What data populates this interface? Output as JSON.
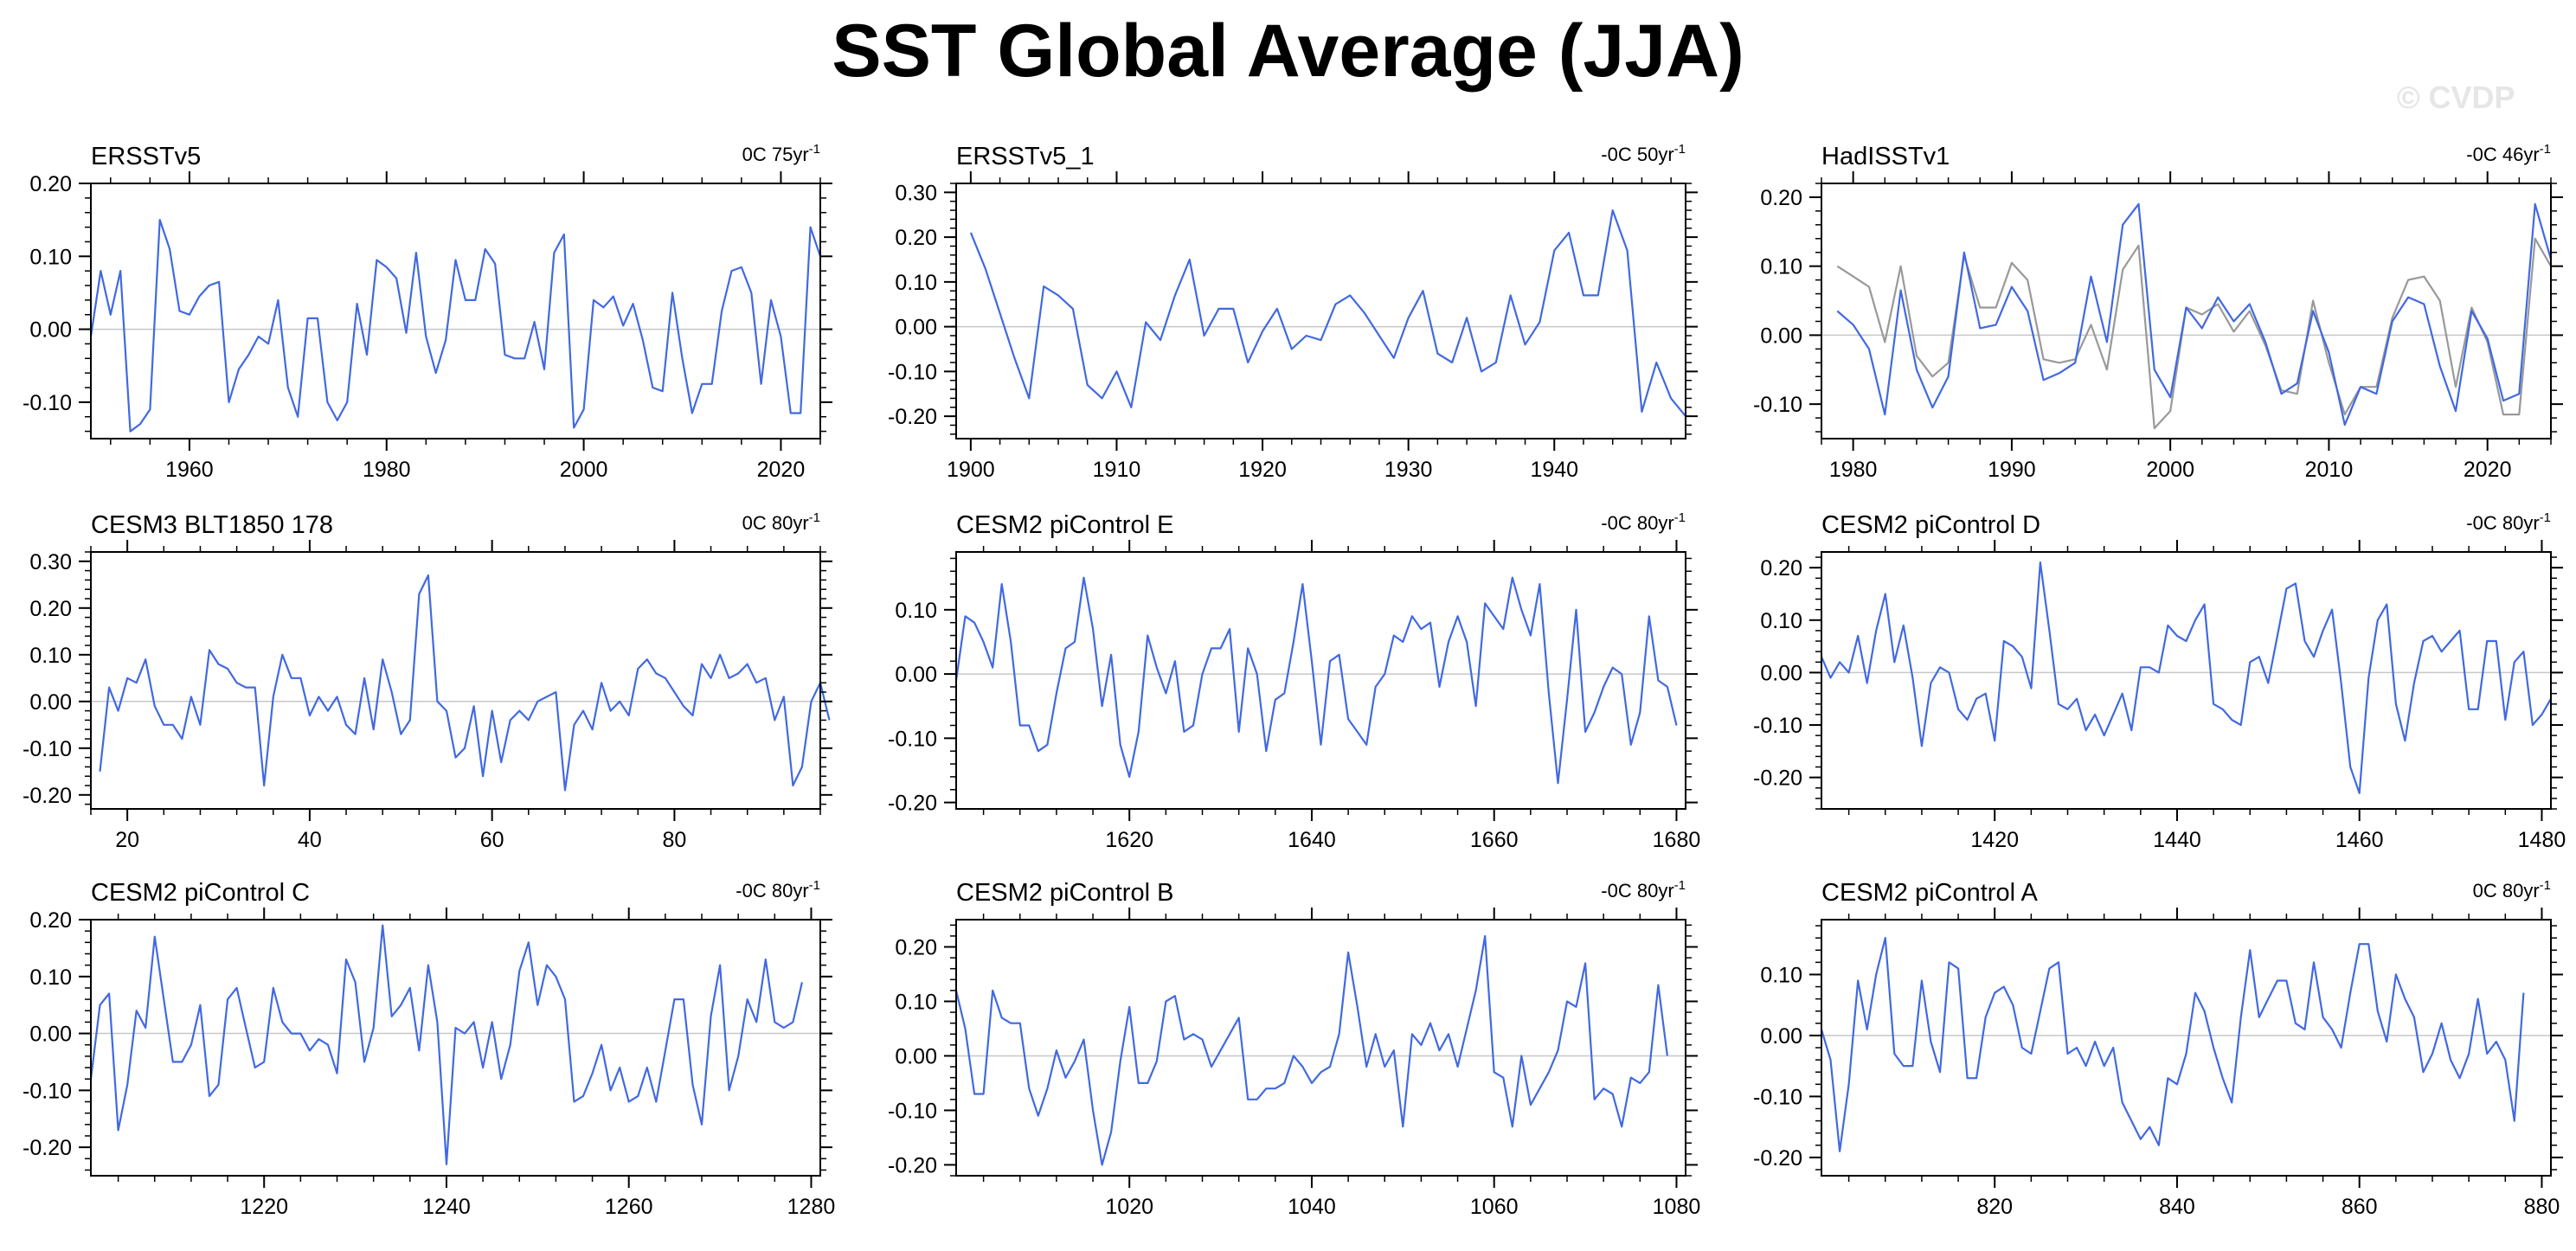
{
  "title": "SST Global Average (JJA)",
  "watermark": "© CVDP",
  "colors": {
    "series": "#4169e1",
    "secondary": "#999999",
    "zero_line": "#c8c8c8",
    "axis": "#000000"
  },
  "chart_data": [
    {
      "type": "line",
      "title": "ERSSTv5",
      "trend": "0C 75yr",
      "trend_exp": "-1",
      "xlim": [
        1950,
        2024
      ],
      "ylim": [
        -0.15,
        0.2
      ],
      "yticks": [
        -0.1,
        0.0,
        0.1,
        0.2
      ],
      "xticks": [
        1960,
        1980,
        2000,
        2020
      ],
      "x_start": 1950,
      "series": [
        {
          "values": [
            -0.01,
            0.08,
            0.02,
            0.08,
            -0.14,
            -0.13,
            -0.11,
            0.15,
            0.11,
            0.025,
            0.02,
            0.045,
            0.06,
            0.065,
            -0.1,
            -0.055,
            -0.035,
            -0.01,
            -0.02,
            0.04,
            -0.08,
            -0.12,
            0.015,
            0.015,
            -0.1,
            -0.125,
            -0.1,
            0.035,
            -0.035,
            0.095,
            0.085,
            0.07,
            -0.005,
            0.105,
            -0.01,
            -0.06,
            -0.015,
            0.095,
            0.04,
            0.04,
            0.11,
            0.09,
            -0.035,
            -0.04,
            -0.04,
            0.01,
            -0.055,
            0.105,
            0.13,
            -0.135,
            -0.11,
            0.04,
            0.03,
            0.045,
            0.005,
            0.035,
            -0.015,
            -0.08,
            -0.085,
            0.05,
            -0.04,
            -0.115,
            -0.075,
            -0.075,
            0.025,
            0.08,
            0.085,
            0.05,
            -0.075,
            0.04,
            -0.01,
            -0.115,
            -0.115,
            0.14,
            0.1
          ]
        }
      ]
    },
    {
      "type": "line",
      "title": "ERSSTv5_1",
      "trend": "-0C 50yr",
      "trend_exp": "-1",
      "xlim": [
        1899,
        1949
      ],
      "ylim": [
        -0.25,
        0.32
      ],
      "yticks": [
        -0.2,
        -0.1,
        0.0,
        0.1,
        0.2,
        0.3
      ],
      "xticks": [
        1900,
        1910,
        1920,
        1930,
        1940
      ],
      "x_start": 1900,
      "series": [
        {
          "values": [
            0.21,
            0.13,
            0.03,
            -0.07,
            -0.16,
            0.09,
            0.07,
            0.04,
            -0.13,
            -0.16,
            -0.1,
            -0.18,
            0.01,
            -0.03,
            0.07,
            0.15,
            -0.02,
            0.04,
            0.04,
            -0.08,
            -0.01,
            0.04,
            -0.05,
            -0.02,
            -0.03,
            0.05,
            0.07,
            0.03,
            -0.02,
            -0.07,
            0.02,
            0.08,
            -0.06,
            -0.08,
            0.02,
            -0.1,
            -0.08,
            0.07,
            -0.04,
            0.01,
            0.17,
            0.21,
            0.07,
            0.07,
            0.26,
            0.17,
            -0.19,
            -0.08,
            -0.16,
            -0.2
          ]
        }
      ]
    },
    {
      "type": "line",
      "title": "HadISSTv1",
      "trend": "-0C 46yr",
      "trend_exp": "-1",
      "xlim": [
        1978,
        2024
      ],
      "ylim": [
        -0.15,
        0.22
      ],
      "yticks": [
        -0.1,
        0.0,
        0.1,
        0.2
      ],
      "xticks": [
        1980,
        1990,
        2000,
        2010,
        2020
      ],
      "x_start": 1979,
      "series": [
        {
          "values": [
            0.035,
            0.015,
            -0.02,
            -0.115,
            0.065,
            -0.05,
            -0.105,
            -0.06,
            0.12,
            0.01,
            0.015,
            0.07,
            0.035,
            -0.065,
            -0.055,
            -0.04,
            0.085,
            -0.01,
            0.16,
            0.19,
            -0.05,
            -0.09,
            0.04,
            0.01,
            0.055,
            0.02,
            0.045,
            -0.01,
            -0.085,
            -0.07,
            0.035,
            -0.025,
            -0.13,
            -0.075,
            -0.085,
            0.02,
            0.055,
            0.045,
            -0.045,
            -0.11,
            0.035,
            -0.005,
            -0.095,
            -0.085,
            0.19,
            0.11
          ]
        },
        {
          "values": [
            0.1,
            0.085,
            0.07,
            -0.01,
            0.1,
            -0.03,
            -0.06,
            -0.04,
            0.115,
            0.04,
            0.04,
            0.105,
            0.08,
            -0.035,
            -0.04,
            -0.035,
            0.015,
            -0.05,
            0.095,
            0.13,
            -0.135,
            -0.11,
            0.04,
            0.03,
            0.045,
            0.005,
            0.035,
            -0.015,
            -0.08,
            -0.085,
            0.05,
            -0.04,
            -0.115,
            -0.075,
            -0.075,
            0.025,
            0.08,
            0.085,
            0.05,
            -0.075,
            0.04,
            -0.01,
            -0.115,
            -0.115,
            0.14,
            0.1
          ]
        }
      ]
    },
    {
      "type": "line",
      "title": "CESM3 BLT1850 178",
      "trend": "0C 80yr",
      "trend_exp": "-1",
      "xlim": [
        16,
        96
      ],
      "ylim": [
        -0.23,
        0.32
      ],
      "yticks": [
        -0.2,
        -0.1,
        0.0,
        0.1,
        0.2,
        0.3
      ],
      "xticks": [
        20,
        40,
        60,
        80
      ],
      "x_start": 17,
      "series": [
        {
          "values": [
            -0.15,
            0.03,
            -0.02,
            0.05,
            0.04,
            0.09,
            -0.01,
            -0.05,
            -0.05,
            -0.08,
            0.01,
            -0.05,
            0.11,
            0.08,
            0.07,
            0.04,
            0.03,
            0.03,
            -0.18,
            0.01,
            0.1,
            0.05,
            0.05,
            -0.03,
            0.01,
            -0.02,
            0.01,
            -0.05,
            -0.07,
            0.05,
            -0.06,
            0.09,
            0.02,
            -0.07,
            -0.04,
            0.23,
            0.27,
            0.0,
            -0.02,
            -0.12,
            -0.1,
            -0.01,
            -0.16,
            -0.02,
            -0.13,
            -0.04,
            -0.02,
            -0.04,
            0.0,
            0.01,
            0.02,
            -0.19,
            -0.05,
            -0.02,
            -0.06,
            0.04,
            -0.02,
            0.0,
            -0.03,
            0.07,
            0.09,
            0.06,
            0.05,
            0.02,
            -0.01,
            -0.03,
            0.08,
            0.05,
            0.1,
            0.05,
            0.06,
            0.08,
            0.04,
            0.05,
            -0.04,
            0.01,
            -0.18,
            -0.14,
            0.0,
            0.04,
            -0.04
          ]
        }
      ]
    },
    {
      "type": "line",
      "title": "CESM2 piControl E",
      "trend": "-0C 80yr",
      "trend_exp": "-1",
      "xlim": [
        1601,
        1681
      ],
      "ylim": [
        -0.21,
        0.19
      ],
      "yticks": [
        -0.2,
        -0.1,
        0.0,
        0.1
      ],
      "xticks": [
        1620,
        1640,
        1660,
        1680
      ],
      "x_start": 1601,
      "series": [
        {
          "values": [
            -0.01,
            0.09,
            0.08,
            0.05,
            0.01,
            0.14,
            0.05,
            -0.08,
            -0.08,
            -0.12,
            -0.11,
            -0.03,
            0.04,
            0.05,
            0.15,
            0.07,
            -0.05,
            0.03,
            -0.11,
            -0.16,
            -0.09,
            0.06,
            0.01,
            -0.03,
            0.02,
            -0.09,
            -0.08,
            0.0,
            0.04,
            0.04,
            0.07,
            -0.09,
            0.04,
            0.0,
            -0.12,
            -0.04,
            -0.03,
            0.05,
            0.14,
            0.02,
            -0.11,
            0.02,
            0.03,
            -0.07,
            -0.09,
            -0.11,
            -0.02,
            0.0,
            0.06,
            0.05,
            0.09,
            0.07,
            0.08,
            -0.02,
            0.05,
            0.09,
            0.05,
            -0.05,
            0.11,
            0.09,
            0.07,
            0.15,
            0.1,
            0.06,
            0.14,
            -0.03,
            -0.17,
            -0.04,
            0.1,
            -0.09,
            -0.06,
            -0.02,
            0.01,
            0.0,
            -0.11,
            -0.06,
            0.09,
            -0.01,
            -0.02,
            -0.08
          ]
        }
      ]
    },
    {
      "type": "line",
      "title": "CESM2 piControl D",
      "trend": "-0C 80yr",
      "trend_exp": "-1",
      "xlim": [
        1401,
        1481
      ],
      "ylim": [
        -0.26,
        0.23
      ],
      "yticks": [
        -0.2,
        -0.1,
        0.0,
        0.1,
        0.2
      ],
      "xticks": [
        1420,
        1440,
        1460,
        1480
      ],
      "x_start": 1401,
      "series": [
        {
          "values": [
            0.03,
            -0.01,
            0.02,
            0.0,
            0.07,
            -0.02,
            0.08,
            0.15,
            0.02,
            0.09,
            -0.01,
            -0.14,
            -0.02,
            0.01,
            0.0,
            -0.07,
            -0.09,
            -0.05,
            -0.04,
            -0.13,
            0.06,
            0.05,
            0.03,
            -0.03,
            0.21,
            0.08,
            -0.06,
            -0.07,
            -0.05,
            -0.11,
            -0.08,
            -0.12,
            -0.08,
            -0.04,
            -0.11,
            0.01,
            0.01,
            0.0,
            0.09,
            0.07,
            0.06,
            0.1,
            0.13,
            -0.06,
            -0.07,
            -0.09,
            -0.1,
            0.02,
            0.03,
            -0.02,
            0.07,
            0.16,
            0.17,
            0.06,
            0.03,
            0.08,
            0.12,
            -0.02,
            -0.18,
            -0.23,
            -0.01,
            0.1,
            0.13,
            -0.06,
            -0.13,
            -0.02,
            0.06,
            0.07,
            0.04,
            0.06,
            0.08,
            -0.07,
            -0.07,
            0.06,
            0.06,
            -0.09,
            0.02,
            0.04,
            -0.1,
            -0.08,
            -0.05
          ]
        }
      ]
    },
    {
      "type": "line",
      "title": "CESM2 piControl C",
      "trend": "-0C 80yr",
      "trend_exp": "-1",
      "xlim": [
        1201,
        1281
      ],
      "ylim": [
        -0.25,
        0.2
      ],
      "yticks": [
        -0.2,
        -0.1,
        0.0,
        0.1,
        0.2
      ],
      "xticks": [
        1220,
        1240,
        1260,
        1280
      ],
      "x_start": 1201,
      "series": [
        {
          "values": [
            -0.08,
            0.05,
            0.07,
            -0.17,
            -0.09,
            0.04,
            0.01,
            0.17,
            0.06,
            -0.05,
            -0.05,
            -0.02,
            0.05,
            -0.11,
            -0.09,
            0.06,
            0.08,
            0.01,
            -0.06,
            -0.05,
            0.08,
            0.02,
            0.0,
            0.0,
            -0.03,
            -0.01,
            -0.02,
            -0.07,
            0.13,
            0.09,
            -0.05,
            0.01,
            0.19,
            0.03,
            0.05,
            0.08,
            -0.03,
            0.12,
            0.02,
            -0.23,
            0.01,
            0.0,
            0.02,
            -0.06,
            0.02,
            -0.08,
            -0.02,
            0.11,
            0.16,
            0.05,
            0.12,
            0.1,
            0.06,
            -0.12,
            -0.11,
            -0.07,
            -0.02,
            -0.1,
            -0.06,
            -0.12,
            -0.11,
            -0.06,
            -0.12,
            -0.03,
            0.06,
            0.06,
            -0.09,
            -0.16,
            0.03,
            0.12,
            -0.1,
            -0.04,
            0.06,
            0.02,
            0.13,
            0.02,
            0.01,
            0.02,
            0.09
          ]
        }
      ]
    },
    {
      "type": "line",
      "title": "CESM2 piControl B",
      "trend": "-0C 80yr",
      "trend_exp": "-1",
      "xlim": [
        1001,
        1081
      ],
      "ylim": [
        -0.22,
        0.25
      ],
      "yticks": [
        -0.2,
        -0.1,
        0.0,
        0.1,
        0.2
      ],
      "xticks": [
        1020,
        1040,
        1060,
        1080
      ],
      "x_start": 1001,
      "series": [
        {
          "values": [
            0.12,
            0.05,
            -0.07,
            -0.07,
            0.12,
            0.07,
            0.06,
            0.06,
            -0.06,
            -0.11,
            -0.06,
            0.01,
            -0.04,
            -0.01,
            0.03,
            -0.1,
            -0.2,
            -0.14,
            -0.01,
            0.09,
            -0.05,
            -0.05,
            -0.01,
            0.1,
            0.11,
            0.03,
            0.04,
            0.03,
            -0.02,
            0.01,
            0.04,
            0.07,
            -0.08,
            -0.08,
            -0.06,
            -0.06,
            -0.05,
            0.0,
            -0.02,
            -0.05,
            -0.03,
            -0.02,
            0.04,
            0.19,
            0.09,
            -0.02,
            0.04,
            -0.02,
            0.01,
            -0.13,
            0.04,
            0.02,
            0.06,
            0.01,
            0.04,
            -0.02,
            0.05,
            0.12,
            0.22,
            -0.03,
            -0.04,
            -0.13,
            0.0,
            -0.09,
            -0.06,
            -0.03,
            0.01,
            0.1,
            0.09,
            0.17,
            -0.08,
            -0.06,
            -0.07,
            -0.13,
            -0.04,
            -0.05,
            -0.03,
            0.13,
            0.0
          ]
        }
      ]
    },
    {
      "type": "line",
      "title": "CESM2 piControl A",
      "trend": "0C 80yr",
      "trend_exp": "-1",
      "xlim": [
        801,
        881
      ],
      "ylim": [
        -0.23,
        0.19
      ],
      "yticks": [
        -0.2,
        -0.1,
        0.0,
        0.1
      ],
      "xticks": [
        820,
        840,
        860,
        880
      ],
      "x_start": 801,
      "series": [
        {
          "values": [
            0.01,
            -0.04,
            -0.19,
            -0.08,
            0.09,
            0.01,
            0.1,
            0.16,
            -0.03,
            -0.05,
            -0.05,
            0.09,
            -0.01,
            -0.06,
            0.12,
            0.11,
            -0.07,
            -0.07,
            0.03,
            0.07,
            0.08,
            0.05,
            -0.02,
            -0.03,
            0.04,
            0.11,
            0.12,
            -0.03,
            -0.02,
            -0.05,
            -0.01,
            -0.05,
            -0.02,
            -0.11,
            -0.14,
            -0.17,
            -0.15,
            -0.18,
            -0.07,
            -0.08,
            -0.03,
            0.07,
            0.04,
            -0.02,
            -0.07,
            -0.11,
            0.03,
            0.14,
            0.03,
            0.06,
            0.09,
            0.09,
            0.02,
            0.01,
            0.12,
            0.03,
            0.01,
            -0.02,
            0.07,
            0.15,
            0.15,
            0.04,
            -0.01,
            0.1,
            0.06,
            0.03,
            -0.06,
            -0.03,
            0.02,
            -0.04,
            -0.07,
            -0.03,
            0.06,
            -0.03,
            -0.01,
            -0.04,
            -0.14,
            0.07
          ]
        }
      ]
    }
  ]
}
